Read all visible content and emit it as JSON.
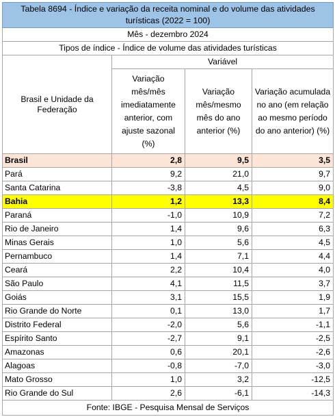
{
  "title": "Tabela 8694 - Índice e variação da receita nominal e do volume das atividades turísticas (2022 = 100)",
  "month_label": "Mês - dezembro 2024",
  "index_type": "Tipos de índice - Índice de volume das atividades turísticas",
  "variable_label": "Variável",
  "row_header": "Brasil e Unidade da Federação",
  "columns": [
    "Variação mês/mês imediatamente anterior, com ajuste sazonal (%)",
    "Variação mês/mesmo mês do ano anterior (%)",
    "Variação acumulada no ano (em relação ao mesmo período do ano anterior) (%)"
  ],
  "rows": [
    {
      "name": "Brasil",
      "v1": "2,8",
      "v2": "9,5",
      "v3": "3,5",
      "highlight": "brasil"
    },
    {
      "name": "Pará",
      "v1": "9,2",
      "v2": "21,0",
      "v3": "9,7"
    },
    {
      "name": "Santa Catarina",
      "v1": "-3,8",
      "v2": "4,5",
      "v3": "9,0"
    },
    {
      "name": "Bahia",
      "v1": "1,2",
      "v2": "13,3",
      "v3": "8,4",
      "highlight": "bahia"
    },
    {
      "name": "Paraná",
      "v1": "-1,0",
      "v2": "10,9",
      "v3": "7,2"
    },
    {
      "name": "Rio de Janeiro",
      "v1": "1,4",
      "v2": "9,6",
      "v3": "6,3"
    },
    {
      "name": "Minas Gerais",
      "v1": "1,0",
      "v2": "5,6",
      "v3": "4,5"
    },
    {
      "name": "Pernambuco",
      "v1": "1,4",
      "v2": "7,1",
      "v3": "4,4"
    },
    {
      "name": "Ceará",
      "v1": "2,2",
      "v2": "10,4",
      "v3": "4,0"
    },
    {
      "name": "São Paulo",
      "v1": "4,1",
      "v2": "11,5",
      "v3": "3,7"
    },
    {
      "name": "Goiás",
      "v1": "3,1",
      "v2": "15,5",
      "v3": "1,9"
    },
    {
      "name": "Rio Grande do Norte",
      "v1": "0,1",
      "v2": "13,0",
      "v3": "1,7"
    },
    {
      "name": "Distrito Federal",
      "v1": "-2,0",
      "v2": "5,6",
      "v3": "-1,1"
    },
    {
      "name": "Espírito Santo",
      "v1": "-2,7",
      "v2": "9,1",
      "v3": "-2,5"
    },
    {
      "name": "Amazonas",
      "v1": "0,6",
      "v2": "20,1",
      "v3": "-2,6"
    },
    {
      "name": "Alagoas",
      "v1": "-0,8",
      "v2": "-7,0",
      "v3": "-3,0"
    },
    {
      "name": "Mato Grosso",
      "v1": "1,0",
      "v2": "3,2",
      "v3": "-12,5"
    },
    {
      "name": "Rio Grande do Sul",
      "v1": "2,6",
      "v2": "-6,1",
      "v3": "-14,3"
    }
  ],
  "footer": "Fonte: IBGE - Pesquisa Mensal de Serviços",
  "colors": {
    "title_bg": "#9dc3e6",
    "brasil_bg": "#fce4d6",
    "bahia_bg": "#ffff00",
    "grid": "#a6a6a6"
  }
}
